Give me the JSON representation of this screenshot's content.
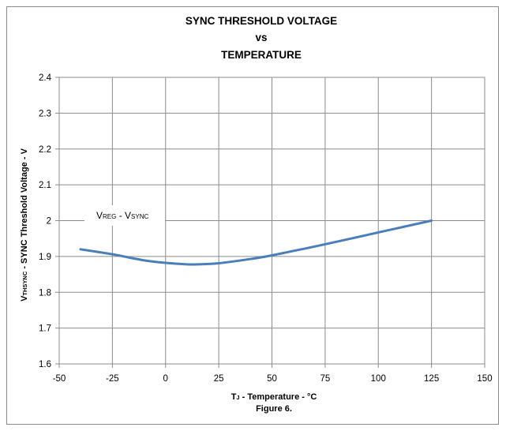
{
  "chart_data": {
    "type": "line",
    "title_lines": [
      "SYNC THRESHOLD VOLTAGE",
      "vs",
      "TEMPERATURE"
    ],
    "xlabel": {
      "main": "T",
      "sub": "J",
      "rest": " - Temperature - °C"
    },
    "ylabel": {
      "main": "V",
      "sub": "THSYNC",
      "rest": " - SYNC Threshold Voltage - V"
    },
    "caption": "Figure 6.",
    "xlim": [
      -50,
      150
    ],
    "ylim": [
      1.6,
      2.4
    ],
    "x_ticks": [
      "-50",
      "-25",
      "0",
      "25",
      "50",
      "75",
      "100",
      "125",
      "150"
    ],
    "y_ticks": [
      "1.6",
      "1.7",
      "1.8",
      "1.9",
      "2",
      "2.1",
      "2.2",
      "2.3",
      "2.4"
    ],
    "grid": true,
    "series": [
      {
        "name": {
          "v1": "V",
          "s1": "REG",
          "mid": " - V",
          "s2": "SYNC"
        },
        "color": "#4a7ebb",
        "x": [
          -40,
          -25,
          -10,
          0,
          10,
          15,
          25,
          40,
          50,
          75,
          100,
          125
        ],
        "y": [
          1.92,
          1.906,
          1.889,
          1.882,
          1.878,
          1.878,
          1.881,
          1.893,
          1.903,
          1.934,
          1.967,
          2.0
        ]
      }
    ]
  }
}
